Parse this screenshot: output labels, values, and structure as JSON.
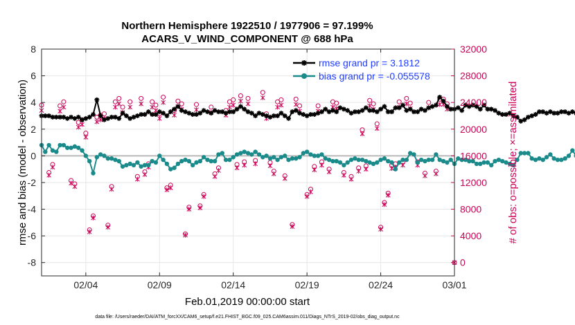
{
  "chart_data": {
    "type": "line",
    "title": "Northern Hemisphere 1922510 / 1977906 = 97.199%",
    "subtitle": "ACARS_V_WIND_COMPONENT @ 688 hPa",
    "xlabel": "Feb.01,2019 00:00:00 start",
    "ylabel_left": "rmse and bias (model - observation)",
    "ylabel_right": "# of obs: o=possible; ×=assimilated",
    "footer": "data file: /Users/raeder/DAI/ATM_forcXX/CAM6_setup/f.e21.FHIST_BGC.f09_025.CAM6assim.011/Diags_NTrS_2019-02/obs_diag_output.nc",
    "xlim": [
      0,
      28
    ],
    "ylim_left": [
      -9,
      8
    ],
    "ylim_right": [
      -2000,
      32000
    ],
    "x_ticks": [
      3,
      8,
      13,
      18,
      23,
      28
    ],
    "x_tick_labels": [
      "02/04",
      "02/09",
      "02/14",
      "02/19",
      "02/24",
      "03/01"
    ],
    "y_left_ticks": [
      -8,
      -6,
      -4,
      -2,
      0,
      2,
      4,
      6,
      8
    ],
    "y_left_tick_labels": [
      "-8",
      "-6",
      "-4",
      "-2",
      "0",
      "2",
      "4",
      "6",
      "8"
    ],
    "y_right_ticks": [
      0,
      4000,
      8000,
      12000,
      16000,
      20000,
      24000,
      28000,
      32000
    ],
    "y_right_tick_labels": [
      "0",
      "4000",
      "8000",
      "12000",
      "16000",
      "20000",
      "24000",
      "28000",
      "32000"
    ],
    "grid": true,
    "legend_position": "top-right",
    "x_step": 0.25,
    "series": [
      {
        "name": "rmse grand pr = 3.1812",
        "axis": "left",
        "color": "#000000",
        "values": [
          3.0,
          3.0,
          3.0,
          2.9,
          2.9,
          2.9,
          2.9,
          2.8,
          2.9,
          2.8,
          2.9,
          2.7,
          2.8,
          2.9,
          3.1,
          4.2,
          3.0,
          2.7,
          2.8,
          2.9,
          2.9,
          2.8,
          3.2,
          3.0,
          2.8,
          2.9,
          3.0,
          3.1,
          3.1,
          3.3,
          3.1,
          3.1,
          3.3,
          3.2,
          3.0,
          3.3,
          3.5,
          3.7,
          3.4,
          3.3,
          3.2,
          3.1,
          3.1,
          3.2,
          3.4,
          3.3,
          3.2,
          3.4,
          3.3,
          3.3,
          3.2,
          3.3,
          3.3,
          3.5,
          3.7,
          3.5,
          3.3,
          3.2,
          3.0,
          3.2,
          3.1,
          3.0,
          2.9,
          3.0,
          3.0,
          3.2,
          3.0,
          2.8,
          3.3,
          3.4,
          3.2,
          3.1,
          3.0,
          3.1,
          3.1,
          3.2,
          3.3,
          3.5,
          3.3,
          3.4,
          3.3,
          3.6,
          3.5,
          3.4,
          3.2,
          3.3,
          3.3,
          3.4,
          3.6,
          3.4,
          3.4,
          3.3,
          3.5,
          3.7,
          3.3,
          3.3,
          3.6,
          3.6,
          3.8,
          3.4,
          3.5,
          3.3,
          3.3,
          3.5,
          3.4,
          3.6,
          3.7,
          3.8,
          4.4,
          4.1,
          3.7,
          3.5,
          3.5,
          3.6,
          3.4,
          3.8,
          3.7,
          3.8,
          3.7,
          3.5,
          3.8,
          3.5,
          3.5,
          3.4,
          3.2,
          3.1,
          3.1,
          3.2,
          3.0,
          2.9,
          2.6,
          2.7,
          2.9,
          3.0,
          3.1,
          3.3,
          3.3,
          3.2,
          3.3,
          3.2,
          3.2,
          3.3,
          3.3,
          3.2,
          3.3,
          3.2,
          3.4,
          3.1,
          3.0,
          3.1,
          3.0,
          3.0,
          3.2,
          3.2,
          3.4,
          3.4,
          3.3,
          3.2,
          3.0,
          3.3,
          3.6,
          3.7,
          3.6,
          3.3,
          3.3,
          3.4,
          3.5,
          3.3,
          3.0,
          3.1,
          3.3,
          3.2,
          3.0,
          2.9,
          2.9,
          3.0,
          3.1,
          3.3,
          3.1,
          3.0,
          3.2,
          3.1,
          3.1,
          3.0,
          3.0,
          3.1,
          3.0,
          3.1,
          3.1,
          3.2,
          3.3,
          3.1,
          3.1,
          3.0,
          3.1,
          3.1,
          3.3,
          3.2,
          3.1,
          4.5,
          4.0,
          3.1,
          3.0,
          3.3,
          3.4,
          3.3,
          3.0,
          3.1,
          3.0,
          3.2,
          3.1,
          3.0,
          3.0,
          2.9,
          3.0,
          3.0,
          3.0,
          2.9,
          3.0,
          3.0,
          2.9,
          2.9,
          3.0,
          3.0,
          3.1,
          3.0,
          3.1,
          3.0,
          3.1,
          2.9,
          2.7,
          2.6
        ]
      },
      {
        "name": "bias grand pr = -0.055578",
        "axis": "left",
        "color": "#1a8a8a",
        "values": [
          0.8,
          0.3,
          0.8,
          0.4,
          0.3,
          0.8,
          0.8,
          0.6,
          0.6,
          0.7,
          0.6,
          0.4,
          0.0,
          -0.4,
          -1.3,
          -0.1,
          0.1,
          0.0,
          -0.2,
          -0.2,
          -0.3,
          -0.4,
          -0.8,
          -0.7,
          -0.6,
          -0.7,
          -0.5,
          -0.8,
          -0.7,
          -0.7,
          -0.4,
          -0.5,
          0.0,
          -0.3,
          -0.6,
          -1.0,
          -0.9,
          -0.6,
          -0.4,
          -0.3,
          -0.4,
          -0.7,
          -0.5,
          -0.4,
          -0.1,
          -0.3,
          -0.4,
          -0.4,
          0.1,
          0.2,
          -0.3,
          -0.3,
          -0.1,
          0.1,
          0.2,
          0.3,
          0.2,
          0.1,
          0.3,
          0.1,
          -0.1,
          0.0,
          -0.2,
          -0.1,
          -0.3,
          -0.1,
          0.0,
          -0.3,
          -0.2,
          -0.2,
          -0.1,
          0.2,
          0.3,
          0.1,
          0.0,
          0.0,
          0.1,
          -0.2,
          -0.3,
          -0.4,
          -0.4,
          -0.5,
          -0.7,
          -0.5,
          -0.3,
          -0.2,
          -0.3,
          -0.3,
          -0.4,
          -0.5,
          -0.6,
          -0.5,
          -0.3,
          -0.2,
          -0.4,
          -0.5,
          -1.0,
          -0.5,
          -0.3,
          -0.3,
          0.2,
          0.1,
          -0.5,
          -0.3,
          -0.4,
          -0.3,
          -0.3,
          0.1,
          -0.3,
          -0.4,
          -0.5,
          -0.3,
          -0.6,
          -0.2,
          -0.3,
          -0.3,
          -0.4,
          -0.4,
          -0.6,
          -0.6,
          -0.5,
          -0.5,
          -0.7,
          -0.4,
          -0.3,
          -0.4,
          -0.5,
          -0.6,
          -0.7,
          -0.3,
          0.2,
          0.2,
          0.2,
          -0.2,
          -0.3,
          -0.2,
          -0.3,
          -0.1,
          0.1,
          -0.2,
          -0.3,
          -0.3,
          -0.2,
          0.0,
          0.4,
          0.0,
          -0.3,
          -0.3,
          -0.2,
          -0.1,
          -0.3,
          -0.2,
          -0.5,
          -0.4,
          -0.3,
          -0.4,
          -0.2,
          -0.1,
          0.1,
          -0.3,
          -0.6,
          -0.9,
          -0.7,
          -0.6,
          -0.8,
          -0.3,
          -0.1,
          -0.2,
          -0.4,
          -0.8,
          -0.6,
          -0.3,
          -0.2,
          -0.3,
          -0.4,
          -0.3,
          -0.2,
          -0.1,
          0.0,
          -0.1,
          -0.2,
          -0.3,
          -0.3,
          -0.1,
          0.2,
          0.3,
          0.5,
          0.6,
          0.4,
          0.5,
          0.1,
          0.5,
          0.6,
          0.2,
          -0.1,
          -0.2,
          0.4,
          1.5,
          0.8,
          -0.2,
          -0.3,
          -0.3,
          -0.1,
          -0.3,
          -0.2,
          -0.1,
          0.1,
          0.3,
          0.2,
          0.1,
          -0.2,
          0.3,
          0.1,
          0.2,
          -0.3,
          0.0,
          0.1,
          -0.2,
          -0.3,
          -0.3,
          -0.2,
          0.0,
          0.5,
          0.1,
          -0.3,
          -0.4,
          -0.3
        ]
      }
    ],
    "obs_possible": {
      "name": "possible",
      "axis": "right",
      "marker": "o",
      "color": "#cc0055",
      "points": [
        [
          0.0,
          23600
        ],
        [
          0.5,
          13500
        ],
        [
          0.75,
          14700
        ],
        [
          1.25,
          23500
        ],
        [
          1.5,
          24100
        ],
        [
          2.0,
          12300
        ],
        [
          2.25,
          11800
        ],
        [
          2.5,
          21000
        ],
        [
          2.75,
          21400
        ],
        [
          3.0,
          19400
        ],
        [
          3.25,
          4900
        ],
        [
          3.5,
          7000
        ],
        [
          3.75,
          21800
        ],
        [
          4.0,
          22100
        ],
        [
          4.25,
          22300
        ],
        [
          4.5,
          5600
        ],
        [
          4.75,
          11400
        ],
        [
          5.0,
          24100
        ],
        [
          5.25,
          24600
        ],
        [
          5.5,
          23300
        ],
        [
          6.0,
          24100
        ],
        [
          6.5,
          12900
        ],
        [
          6.75,
          24600
        ],
        [
          7.0,
          13600
        ],
        [
          7.25,
          14800
        ],
        [
          7.5,
          24100
        ],
        [
          7.75,
          23600
        ],
        [
          8.0,
          22300
        ],
        [
          8.25,
          24800
        ],
        [
          8.5,
          11200
        ],
        [
          8.75,
          11600
        ],
        [
          9.0,
          22800
        ],
        [
          9.25,
          24200
        ],
        [
          9.5,
          23800
        ],
        [
          9.75,
          4300
        ],
        [
          10.0,
          8300
        ],
        [
          10.5,
          23700
        ],
        [
          10.75,
          8500
        ],
        [
          11.0,
          10200
        ],
        [
          11.5,
          23300
        ],
        [
          11.75,
          13300
        ],
        [
          12.0,
          14200
        ],
        [
          12.5,
          22800
        ],
        [
          12.75,
          24100
        ],
        [
          13.0,
          24400
        ],
        [
          13.25,
          14700
        ],
        [
          13.5,
          25000
        ],
        [
          13.75,
          15100
        ],
        [
          14.0,
          24600
        ],
        [
          14.5,
          15300
        ],
        [
          15.0,
          25500
        ],
        [
          15.25,
          22300
        ],
        [
          15.5,
          15000
        ],
        [
          15.75,
          13700
        ],
        [
          16.0,
          24100
        ],
        [
          16.25,
          24400
        ],
        [
          16.5,
          13000
        ],
        [
          17.0,
          5700
        ],
        [
          17.25,
          24500
        ],
        [
          17.5,
          23500
        ],
        [
          18.0,
          10200
        ],
        [
          18.25,
          11000
        ],
        [
          18.5,
          14400
        ],
        [
          18.75,
          23500
        ],
        [
          19.0,
          15100
        ],
        [
          19.5,
          14000
        ],
        [
          19.75,
          24100
        ],
        [
          20.0,
          23900
        ],
        [
          20.5,
          13500
        ],
        [
          21.0,
          12900
        ],
        [
          21.5,
          14200
        ],
        [
          21.75,
          19900
        ],
        [
          22.0,
          14500
        ],
        [
          22.25,
          24300
        ],
        [
          22.5,
          23800
        ],
        [
          22.75,
          20800
        ],
        [
          23.0,
          5300
        ],
        [
          23.25,
          9000
        ],
        [
          23.5,
          10400
        ],
        [
          23.75,
          14600
        ],
        [
          24.0,
          14800
        ],
        [
          24.25,
          24100
        ],
        [
          24.5,
          15100
        ],
        [
          24.75,
          24600
        ],
        [
          25.0,
          23900
        ],
        [
          25.5,
          15100
        ],
        [
          26.0,
          13400
        ],
        [
          26.25,
          24000
        ],
        [
          26.75,
          13700
        ],
        [
          27.0,
          24500
        ],
        [
          27.25,
          24500
        ],
        [
          27.5,
          23800
        ],
        [
          28.0,
          0
        ]
      ]
    },
    "obs_assimilated": {
      "name": "assimilated",
      "axis": "right",
      "marker": "x",
      "color": "#cc0055",
      "points": [
        [
          0.0,
          22800
        ],
        [
          0.5,
          13100
        ],
        [
          0.75,
          14300
        ],
        [
          1.25,
          22700
        ],
        [
          1.5,
          23300
        ],
        [
          2.0,
          11900
        ],
        [
          2.25,
          11400
        ],
        [
          2.5,
          20300
        ],
        [
          2.75,
          20700
        ],
        [
          3.0,
          18800
        ],
        [
          3.25,
          4600
        ],
        [
          3.5,
          6700
        ],
        [
          3.75,
          21100
        ],
        [
          4.0,
          21400
        ],
        [
          4.25,
          21600
        ],
        [
          4.5,
          5300
        ],
        [
          4.75,
          11000
        ],
        [
          5.0,
          23300
        ],
        [
          5.25,
          23800
        ],
        [
          5.5,
          22500
        ],
        [
          6.0,
          23300
        ],
        [
          6.5,
          12500
        ],
        [
          6.75,
          23800
        ],
        [
          7.0,
          13200
        ],
        [
          7.25,
          14300
        ],
        [
          7.5,
          23300
        ],
        [
          7.75,
          22800
        ],
        [
          8.0,
          21600
        ],
        [
          8.25,
          24000
        ],
        [
          8.5,
          10900
        ],
        [
          8.75,
          11200
        ],
        [
          9.0,
          22100
        ],
        [
          9.25,
          23400
        ],
        [
          9.5,
          23000
        ],
        [
          9.75,
          4100
        ],
        [
          10.0,
          8000
        ],
        [
          10.5,
          22900
        ],
        [
          10.75,
          8200
        ],
        [
          11.0,
          9900
        ],
        [
          11.5,
          22500
        ],
        [
          11.75,
          12900
        ],
        [
          12.0,
          13800
        ],
        [
          12.5,
          22100
        ],
        [
          12.75,
          23300
        ],
        [
          13.0,
          23600
        ],
        [
          13.25,
          14200
        ],
        [
          13.5,
          24200
        ],
        [
          13.75,
          14600
        ],
        [
          14.0,
          23800
        ],
        [
          14.5,
          14800
        ],
        [
          15.0,
          24700
        ],
        [
          15.25,
          21600
        ],
        [
          15.5,
          14500
        ],
        [
          15.75,
          13300
        ],
        [
          16.0,
          23300
        ],
        [
          16.25,
          23600
        ],
        [
          16.5,
          12600
        ],
        [
          17.0,
          5400
        ],
        [
          17.25,
          23700
        ],
        [
          17.5,
          22700
        ],
        [
          18.0,
          9900
        ],
        [
          18.25,
          10600
        ],
        [
          18.5,
          13900
        ],
        [
          18.75,
          22700
        ],
        [
          19.0,
          14600
        ],
        [
          19.5,
          13600
        ],
        [
          19.75,
          23300
        ],
        [
          20.0,
          23100
        ],
        [
          20.5,
          13100
        ],
        [
          21.0,
          12500
        ],
        [
          21.5,
          13700
        ],
        [
          21.75,
          19300
        ],
        [
          22.0,
          14000
        ],
        [
          22.25,
          23500
        ],
        [
          22.5,
          23000
        ],
        [
          22.75,
          20100
        ],
        [
          23.0,
          5000
        ],
        [
          23.25,
          8700
        ],
        [
          23.5,
          10100
        ],
        [
          23.75,
          14100
        ],
        [
          24.0,
          14300
        ],
        [
          24.25,
          23300
        ],
        [
          24.5,
          14600
        ],
        [
          24.75,
          23800
        ],
        [
          25.0,
          23100
        ],
        [
          25.5,
          14600
        ],
        [
          26.0,
          13000
        ],
        [
          26.25,
          23200
        ],
        [
          26.75,
          13300
        ],
        [
          27.0,
          23700
        ],
        [
          27.25,
          23700
        ],
        [
          27.5,
          23000
        ],
        [
          28.0,
          0
        ]
      ]
    }
  }
}
